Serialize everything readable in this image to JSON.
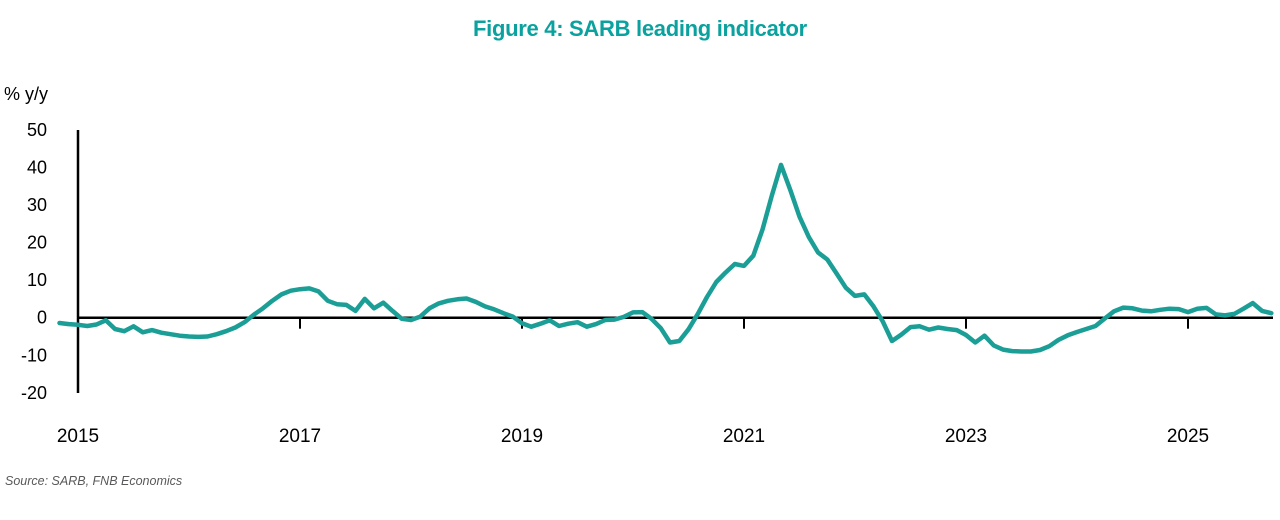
{
  "title": "Figure 4: SARB leading indicator",
  "y_axis_unit": "% y/y",
  "source": "Source: SARB, FNB Economics",
  "colors": {
    "title": "#0AA19E",
    "line": "#1B9E96",
    "axis": "#000000",
    "source_text": "#58595B"
  },
  "chart_data": {
    "type": "line",
    "title": "Figure 4: SARB leading indicator",
    "xlabel": "",
    "ylabel": "% y/y",
    "grid": false,
    "legend": "none",
    "zero_baseline": true,
    "ylim": [
      -20,
      50
    ],
    "y_ticks": [
      50,
      40,
      30,
      20,
      10,
      0,
      -10,
      -20
    ],
    "x_tick_labels": [
      "2015",
      "2017",
      "2019",
      "2021",
      "2023",
      "2025"
    ],
    "x_tick_years": [
      2015,
      2017,
      2019,
      2021,
      2023,
      2025
    ],
    "series": [
      {
        "name": "SARB leading indicator (% y/y)",
        "start": "2014-11",
        "frequency": "monthly",
        "values": [
          -1.4,
          -1.7,
          -1.9,
          -2.2,
          -1.8,
          -0.7,
          -3.0,
          -3.6,
          -2.3,
          -3.9,
          -3.3,
          -4.0,
          -4.4,
          -4.8,
          -5.0,
          -5.1,
          -5.0,
          -4.4,
          -3.6,
          -2.6,
          -1.2,
          0.8,
          2.5,
          4.5,
          6.2,
          7.2,
          7.6,
          7.8,
          7.0,
          4.5,
          3.6,
          3.4,
          1.8,
          5.0,
          2.5,
          4.0,
          1.8,
          -0.3,
          -0.6,
          0.3,
          2.5,
          3.8,
          4.5,
          4.9,
          5.1,
          4.2,
          3.0,
          2.2,
          1.2,
          0.3,
          -1.5,
          -2.4,
          -1.6,
          -0.7,
          -2.2,
          -1.6,
          -1.2,
          -2.4,
          -1.7,
          -0.6,
          -0.5,
          0.2,
          1.4,
          1.5,
          -0.3,
          -2.8,
          -6.6,
          -6.2,
          -3.1,
          1.0,
          5.5,
          9.5,
          12.0,
          14.3,
          13.8,
          16.5,
          23.5,
          32.5,
          40.7,
          34.0,
          26.9,
          21.5,
          17.4,
          15.5,
          11.8,
          8.0,
          5.8,
          6.2,
          3.0,
          -1.0,
          -6.2,
          -4.5,
          -2.5,
          -2.3,
          -3.2,
          -2.6,
          -3.0,
          -3.3,
          -4.6,
          -6.6,
          -4.8,
          -7.4,
          -8.5,
          -8.9,
          -9.0,
          -9.0,
          -8.6,
          -7.6,
          -5.9,
          -4.7,
          -3.8,
          -3.0,
          -2.2,
          -0.2,
          1.7,
          2.7,
          2.5,
          1.9,
          1.7,
          2.1,
          2.4,
          2.3,
          1.5,
          2.4,
          2.6,
          0.9,
          0.6,
          1.0,
          2.4,
          3.9,
          1.8,
          1.2
        ]
      }
    ]
  }
}
